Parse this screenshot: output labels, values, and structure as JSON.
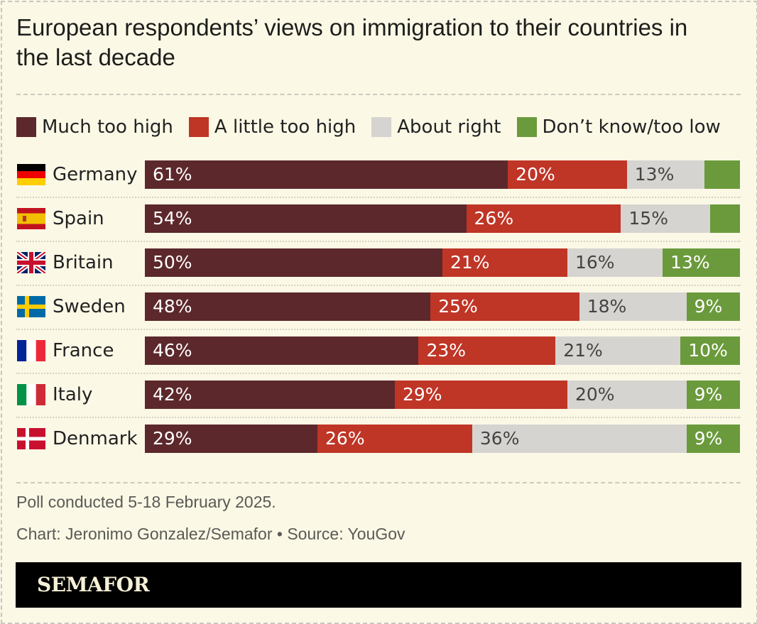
{
  "chart_data": {
    "type": "bar",
    "orientation": "horizontal",
    "stacked": true,
    "title": "European respondents’ views on immigration to their countries in the last decade",
    "legend_position": "top",
    "categories": [
      "Germany",
      "Spain",
      "Britain",
      "Sweden",
      "France",
      "Italy",
      "Denmark"
    ],
    "series": [
      {
        "name": "Much too high",
        "color": "#5c282c",
        "values": [
          61,
          54,
          50,
          48,
          46,
          42,
          29
        ],
        "labels": [
          "61%",
          "54%",
          "50%",
          "48%",
          "46%",
          "42%",
          "29%"
        ]
      },
      {
        "name": "A little too high",
        "color": "#bf3526",
        "values": [
          20,
          26,
          21,
          25,
          23,
          29,
          26
        ],
        "labels": [
          "20%",
          "26%",
          "21%",
          "25%",
          "23%",
          "29%",
          "26%"
        ]
      },
      {
        "name": "About right",
        "color": "#d6d4d0",
        "values": [
          13,
          15,
          16,
          18,
          21,
          20,
          36
        ],
        "labels": [
          "13%",
          "15%",
          "16%",
          "18%",
          "21%",
          "20%",
          "36%"
        ]
      },
      {
        "name": "Don’t know/too low",
        "color": "#6b9a3c",
        "values": [
          6,
          5,
          13,
          9,
          10,
          9,
          9
        ],
        "labels": [
          "",
          "",
          "13%",
          "9%",
          "10%",
          "9%",
          "9%"
        ]
      }
    ],
    "xlim": [
      0,
      100
    ],
    "grid": false
  },
  "flag_icons": [
    "germany-flag-icon",
    "spain-flag-icon",
    "britain-flag-icon",
    "sweden-flag-icon",
    "france-flag-icon",
    "italy-flag-icon",
    "denmark-flag-icon"
  ],
  "footer": {
    "note": "Poll conducted 5-18 February 2025.",
    "credit": "Chart: Jeronimo Gonzalez/Semafor • Source: YouGov",
    "brand": "SEMAFOR"
  }
}
